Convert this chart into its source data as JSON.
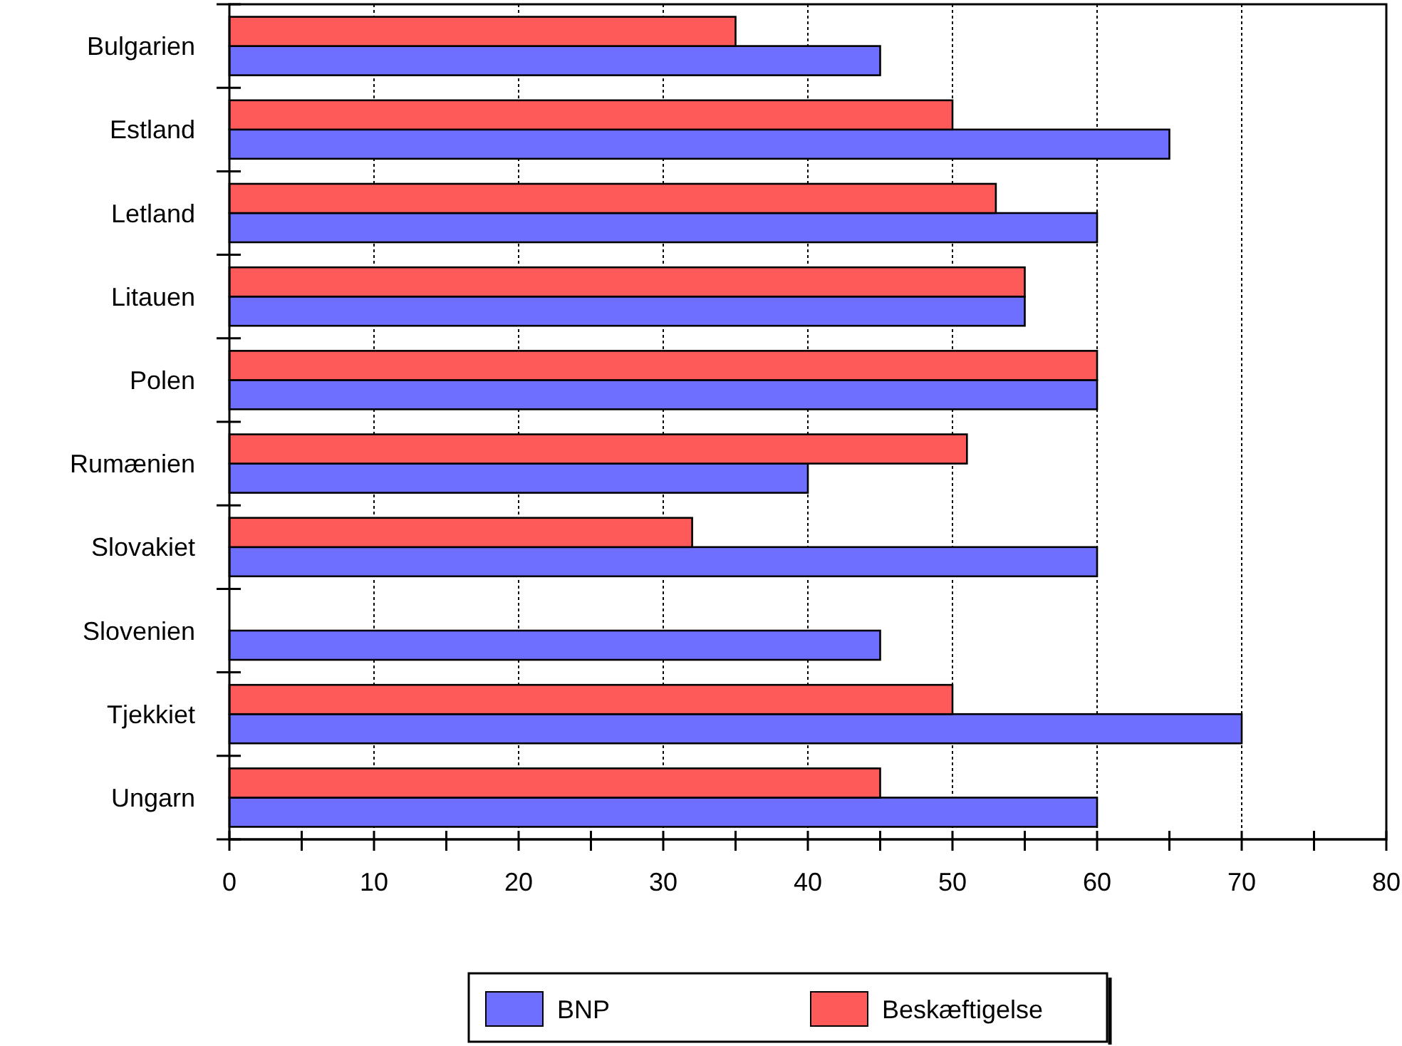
{
  "chart_data": {
    "type": "bar",
    "orientation": "horizontal",
    "categories": [
      "Bulgarien",
      "Estland",
      "Letland",
      "Litauen",
      "Polen",
      "Rumænien",
      "Slovakiet",
      "Slovenien",
      "Tjekkiet",
      "Ungarn"
    ],
    "series": [
      {
        "name": "BNP",
        "color": "#6f6fff",
        "values": [
          45,
          65,
          60,
          55,
          60,
          40,
          60,
          45,
          70,
          60
        ]
      },
      {
        "name": "Beskæftigelse",
        "color": "#ff5a5a",
        "values": [
          35,
          50,
          53,
          55,
          60,
          51,
          32,
          null,
          50,
          45
        ]
      }
    ],
    "xlim": [
      0,
      80
    ],
    "xticks": [
      0,
      {
        "value": 5,
        "label": null
      },
      10,
      {
        "value": 15,
        "label": null
      },
      20,
      {
        "value": 25,
        "label": null
      },
      30,
      {
        "value": 35,
        "label": null
      },
      40,
      {
        "value": 45,
        "label": null
      },
      50,
      {
        "value": 55,
        "label": null
      },
      60,
      {
        "value": 65,
        "label": null
      },
      70,
      {
        "value": 75,
        "label": null
      },
      80
    ],
    "grid": "x",
    "legend": "bottom"
  }
}
